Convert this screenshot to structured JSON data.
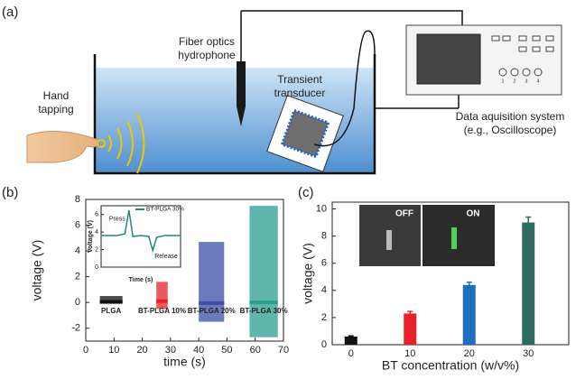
{
  "panel_a": {
    "label": "(a)",
    "hand_label": [
      "Hand",
      "tapping"
    ],
    "hydrophone_label": [
      "Fiber optics",
      "hydrophone"
    ],
    "transducer_label": [
      "Transient",
      "transducer"
    ],
    "daq_label": [
      "Data aquisition system",
      "(e.g., Oscilloscope)"
    ],
    "channels": [
      "1",
      "2",
      "3",
      "4"
    ]
  },
  "chart_data": [
    {
      "type": "signal",
      "panel_label": "(b)",
      "xlabel": "time (s)",
      "ylabel": "voltage (V)",
      "xlim": [
        0,
        70
      ],
      "ylim": [
        -3,
        8
      ],
      "xticks": [
        0,
        10,
        20,
        30,
        40,
        50,
        60,
        70
      ],
      "yticks": [
        -2,
        0,
        2,
        4,
        6,
        8
      ],
      "series": [
        {
          "name": "PLGA",
          "color": "#111111",
          "x": [
            5,
            13
          ],
          "low": -0.1,
          "high": 0.5,
          "baseline": 0.05
        },
        {
          "name": "BT-PLGA 10%",
          "color": "#e8202a",
          "x": [
            25,
            29
          ],
          "low": -0.5,
          "high": 1.6,
          "baseline": 0.1
        },
        {
          "name": "BT-PLGA 20%",
          "color": "#3b4fa8",
          "x": [
            40,
            49
          ],
          "low": -1.5,
          "high": 4.7,
          "baseline": -0.05
        },
        {
          "name": "BT-PLGA 30%",
          "color": "#2a9d8f",
          "x": [
            58,
            68
          ],
          "low": -2.7,
          "high": 7.5,
          "baseline": 0
        }
      ],
      "inset": {
        "type": "line",
        "legend": "BT-PLGA 30%",
        "color": "#1f8a7a",
        "xlabel": "Time (s)",
        "ylabel": "Voltage (V)",
        "xlim": [
          0,
          10
        ],
        "ylim": [
          0,
          7
        ],
        "yticks": [
          0,
          2,
          4,
          6
        ],
        "x": [
          0,
          2,
          3,
          3.5,
          4,
          5,
          6,
          6.5,
          7,
          8,
          10
        ],
        "y": [
          3.6,
          3.6,
          3.8,
          6.5,
          3.5,
          3.6,
          3.5,
          1.9,
          3.4,
          3.6,
          3.6
        ],
        "annotations": [
          "Press",
          "Release"
        ]
      }
    },
    {
      "type": "bar",
      "panel_label": "(c)",
      "xlabel": "BT concentration (w/v%)",
      "ylabel": "voltage (V)",
      "categories": [
        "0",
        "10",
        "20",
        "30"
      ],
      "values": [
        0.6,
        2.3,
        4.4,
        9.0
      ],
      "errors": [
        0.05,
        0.15,
        0.2,
        0.4
      ],
      "colors": [
        "#111111",
        "#e8202a",
        "#1f6fbf",
        "#2e6b5e"
      ],
      "ylim": [
        0,
        10.5
      ],
      "yticks": [
        0,
        2,
        4,
        6,
        8,
        10
      ],
      "photo_labels": [
        "OFF",
        "ON"
      ]
    }
  ]
}
